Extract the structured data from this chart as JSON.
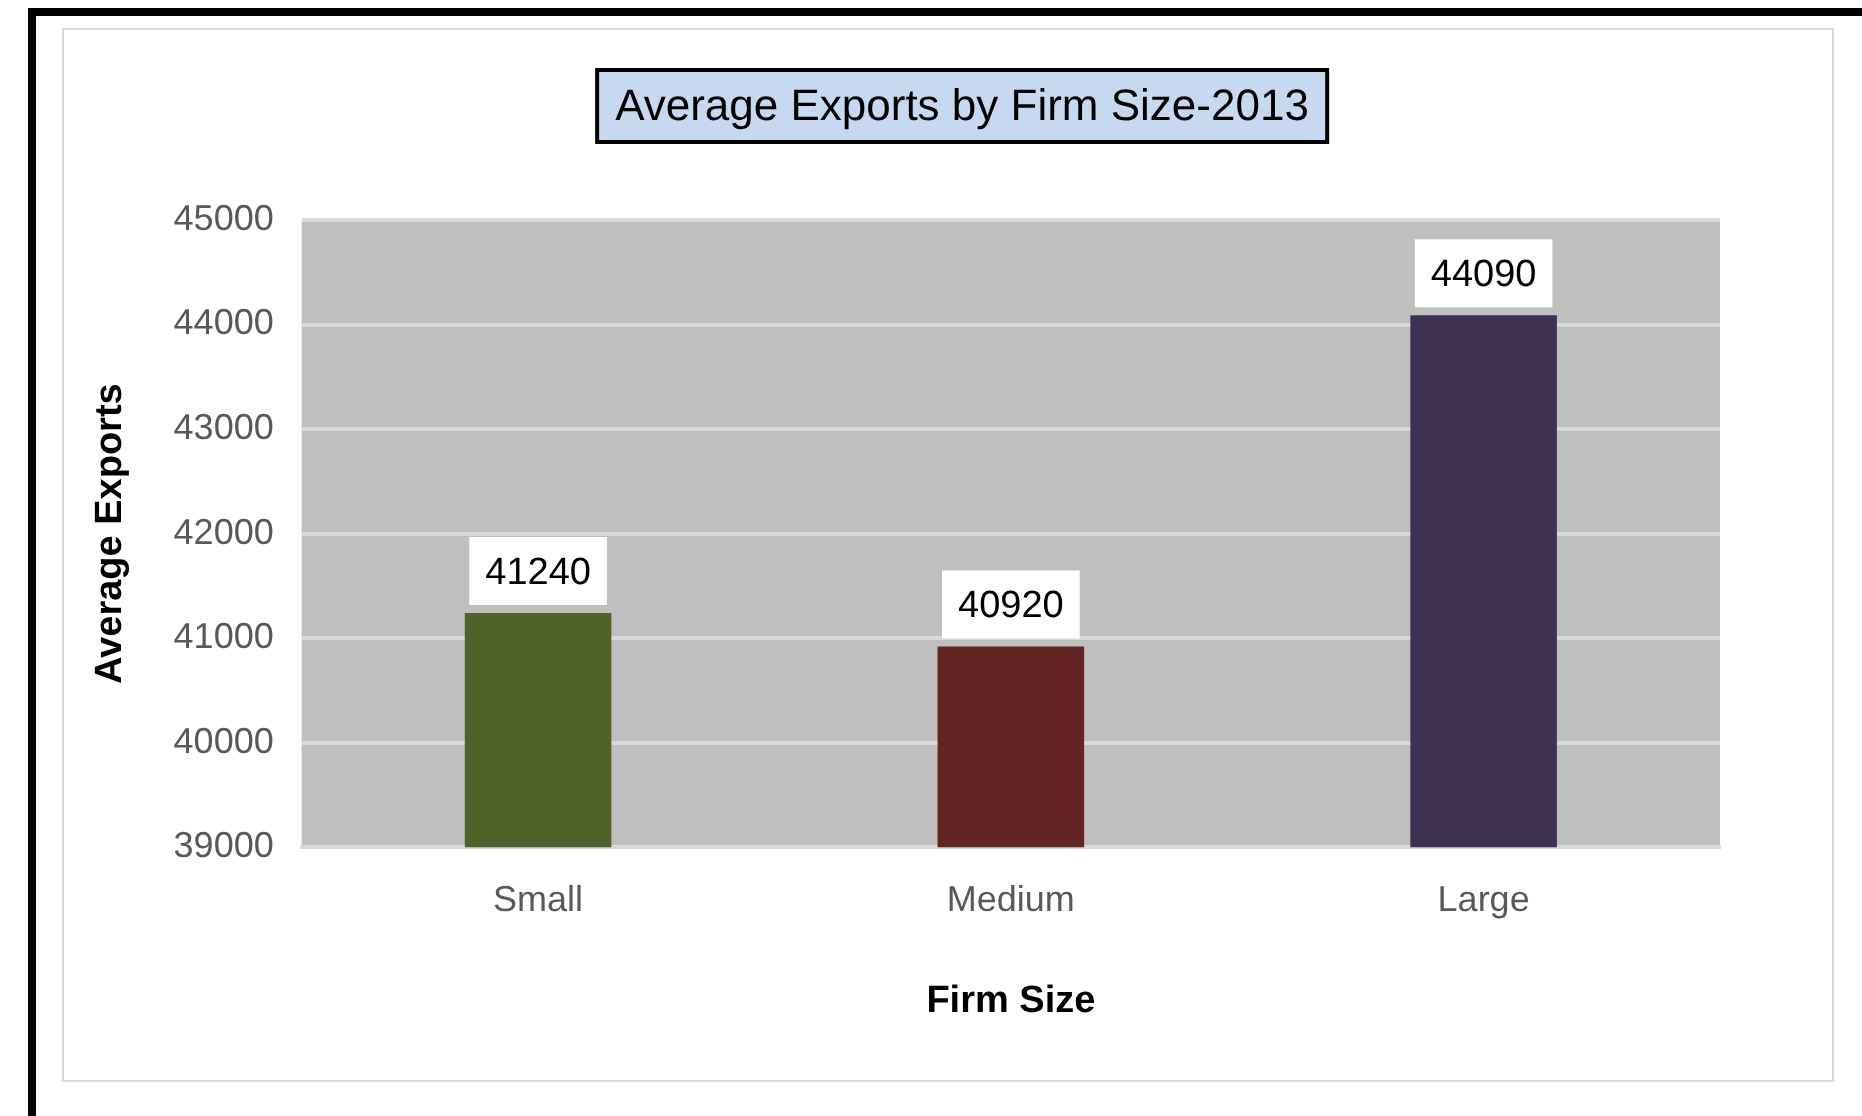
{
  "chart_data": {
    "type": "bar",
    "title": "Average Exports by Firm Size-2013",
    "xlabel": "Firm Size",
    "ylabel": "Average Exports",
    "categories": [
      "Small",
      "Medium",
      "Large"
    ],
    "values": [
      41240,
      40920,
      44090
    ],
    "colors": [
      "#4f6228",
      "#632523",
      "#3f3151"
    ],
    "ylim": [
      39000,
      45000
    ],
    "yticks": [
      39000,
      40000,
      41000,
      42000,
      43000,
      44000,
      45000
    ],
    "grid": "y",
    "data_labels": true,
    "legend": false
  }
}
